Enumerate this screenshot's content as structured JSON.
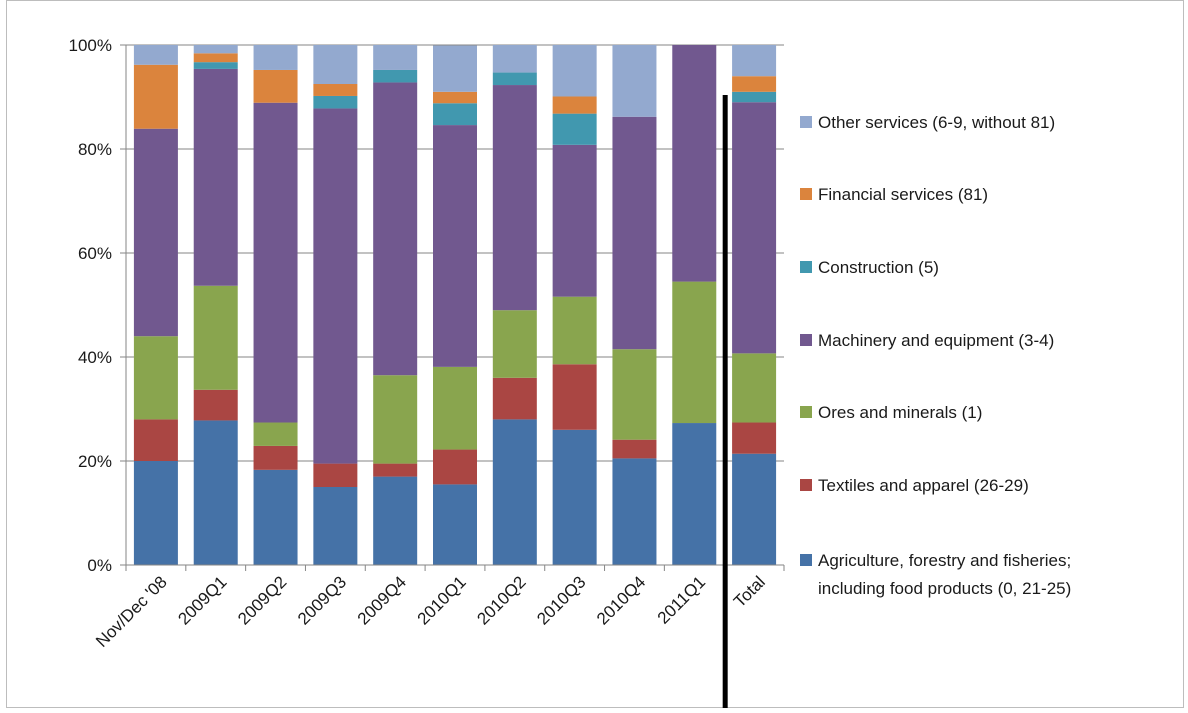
{
  "chart_data": {
    "type": "bar",
    "stacked": true,
    "percent": true,
    "categories": [
      "Nov/Dec '08",
      "2009Q1",
      "2009Q2",
      "2009Q3",
      "2009Q4",
      "2010Q1",
      "2010Q2",
      "2010Q3",
      "2010Q4",
      "2011Q1",
      "Total"
    ],
    "y_ticks": [
      "0%",
      "20%",
      "40%",
      "60%",
      "80%",
      "100%"
    ],
    "ylim": [
      0,
      100
    ],
    "grid": true,
    "legend_position": "right",
    "series": [
      {
        "name": "Agriculture, forestry and fisheries; including food products (0, 21-25)",
        "color": "#4572a7",
        "values": [
          20,
          27.8,
          18.3,
          15,
          17,
          15.5,
          28,
          26,
          20.5,
          27.3,
          21.4
        ]
      },
      {
        "name": "Textiles and apparel (26-29)",
        "color": "#aa4643",
        "values": [
          8,
          5.9,
          4.6,
          4.5,
          2.5,
          6.7,
          8,
          12.6,
          3.6,
          0,
          6
        ]
      },
      {
        "name": "Ores and minerals  (1)",
        "color": "#89a54e",
        "values": [
          16,
          20,
          4.5,
          0,
          17,
          15.9,
          13,
          13,
          17.4,
          27.2,
          13.3
        ]
      },
      {
        "name": "Machinery and equipment (3-4)",
        "color": "#71588f",
        "values": [
          39.9,
          41.7,
          61.5,
          68.3,
          56.3,
          46.5,
          43.3,
          29.2,
          44.7,
          45.5,
          48.3
        ]
      },
      {
        "name": "Construction (5)",
        "color": "#4198af",
        "values": [
          0,
          1.3,
          0,
          2.4,
          2.4,
          4.2,
          2.4,
          6,
          0,
          0,
          2
        ]
      },
      {
        "name": "Financial services (81)",
        "color": "#db843d",
        "values": [
          12.3,
          1.7,
          6.3,
          2.3,
          0,
          2.2,
          0,
          3.3,
          0,
          0,
          3
        ]
      },
      {
        "name": "Other services (6-9, without 81)",
        "color": "#93a9cf",
        "values": [
          3.8,
          1.6,
          4.8,
          7.5,
          4.8,
          8.9,
          5.3,
          9.9,
          13.8,
          0,
          6
        ]
      }
    ],
    "annotation": "vertical black line separating 2011Q1 and Total"
  }
}
